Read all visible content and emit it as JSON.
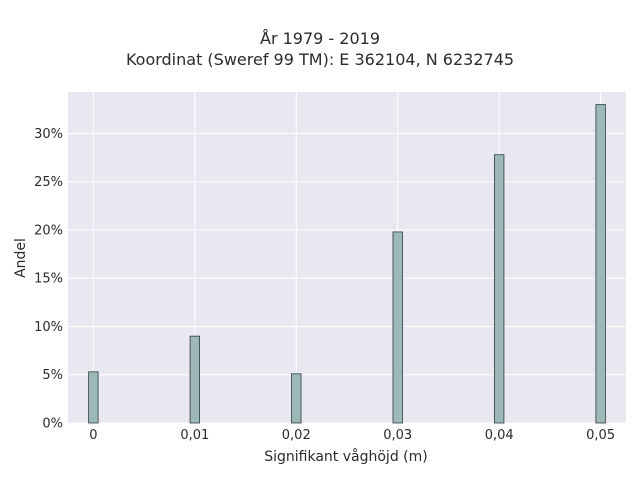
{
  "chart_data": {
    "type": "bar",
    "title_lines": [
      "År 1979 - 2019",
      "Koordinat (Sweref 99 TM): E 362104, N 6232745"
    ],
    "xlabel": "Signifikant våghöjd (m)",
    "ylabel": "Andel",
    "x_ticks": [
      "0",
      "0,01",
      "0,02",
      "0,03",
      "0,04",
      "0,05"
    ],
    "y_ticks": [
      "0%",
      "5%",
      "10%",
      "15%",
      "20%",
      "25%",
      "30%"
    ],
    "categories": [
      "0",
      "0,01",
      "0,02",
      "0,03",
      "0,04",
      "0,05"
    ],
    "values": [
      5.3,
      9.0,
      5.1,
      19.8,
      27.8,
      33.0
    ],
    "ylim": [
      0,
      34.3
    ],
    "xlim": [
      -0.0025,
      0.0525
    ],
    "x_values": [
      0,
      0.01,
      0.02,
      0.03,
      0.04,
      0.05
    ],
    "y_tick_values": [
      0,
      5,
      10,
      15,
      20,
      25,
      30
    ],
    "grid": true,
    "colors": {
      "bar_fill": "#9db8b8",
      "bar_edge": "#2f3b3b",
      "plot_background": "#e8e8f1",
      "grid": "#ffffff"
    }
  }
}
